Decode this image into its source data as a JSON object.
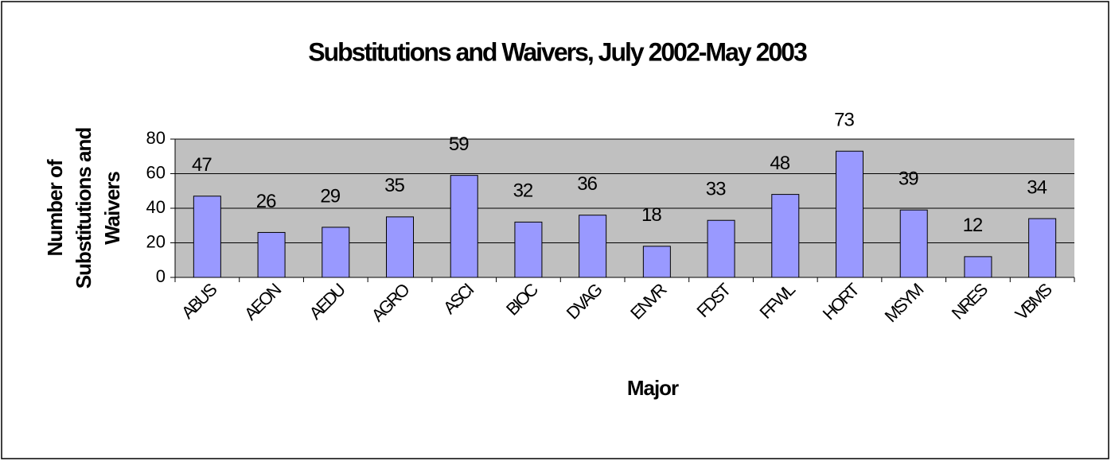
{
  "chart_data": {
    "type": "bar",
    "title": "Substitutions and Waivers, July 2002-May 2003",
    "x_label": "Major",
    "y_label": "Number of Substitutions and Waivers",
    "categories": [
      "ABUS",
      "AEON",
      "AEDU",
      "AGRO",
      "ASCI",
      "BIOC",
      "DVAG",
      "ENVR",
      "FDST",
      "FFWL",
      "HORT",
      "MSYM",
      "NRES",
      "VBMS"
    ],
    "values": [
      47,
      26,
      29,
      35,
      59,
      32,
      36,
      18,
      33,
      48,
      73,
      39,
      12,
      34
    ],
    "color": "#9999ff",
    "plot_background": "#c0c0c0",
    "ylim": [
      0,
      80
    ],
    "yticks": [
      0,
      20,
      40,
      60,
      80
    ],
    "grid": true
  }
}
